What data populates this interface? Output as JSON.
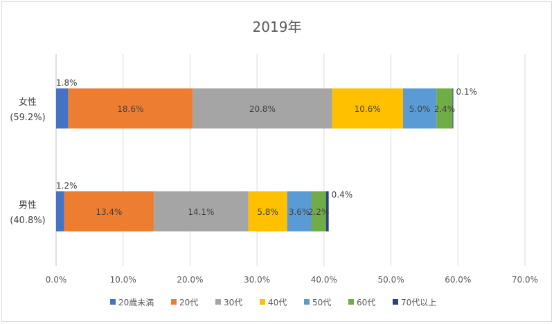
{
  "chart_data": {
    "type": "bar",
    "orientation": "horizontal",
    "stacked": true,
    "title": "2019年",
    "categories": [
      "女性",
      "男性"
    ],
    "category_totals": [
      "(59.2%)",
      "(40.8%)"
    ],
    "series": [
      {
        "name": "20歳未満",
        "color": "#4472c4",
        "values": [
          1.8,
          1.2
        ],
        "labels": [
          "1.8%",
          "1.2%"
        ]
      },
      {
        "name": "20代",
        "color": "#ed7d31",
        "values": [
          18.6,
          13.4
        ],
        "labels": [
          "18.6%",
          "13.4%"
        ]
      },
      {
        "name": "30代",
        "color": "#a5a5a5",
        "values": [
          20.8,
          14.1
        ],
        "labels": [
          "20.8%",
          "14.1%"
        ]
      },
      {
        "name": "40代",
        "color": "#ffc000",
        "values": [
          10.6,
          5.8
        ],
        "labels": [
          "10.6%",
          "5.8%"
        ]
      },
      {
        "name": "50代",
        "color": "#5b9bd5",
        "values": [
          5.0,
          3.6
        ],
        "labels": [
          "5.0%",
          "3.6%"
        ]
      },
      {
        "name": "60代",
        "color": "#70ad47",
        "values": [
          2.4,
          2.2
        ],
        "labels": [
          "2.4%",
          "2.2%"
        ]
      },
      {
        "name": "70代以上",
        "color": "#264478",
        "values": [
          0.1,
          0.4
        ],
        "labels": [
          "0.1%",
          "0.4%"
        ]
      }
    ],
    "xlim": [
      0,
      70
    ],
    "x_ticks": [
      "0.0%",
      "10.0%",
      "20.0%",
      "30.0%",
      "40.0%",
      "50.0%",
      "60.0%",
      "70.0%"
    ],
    "grid": true,
    "legend_position": "bottom"
  }
}
